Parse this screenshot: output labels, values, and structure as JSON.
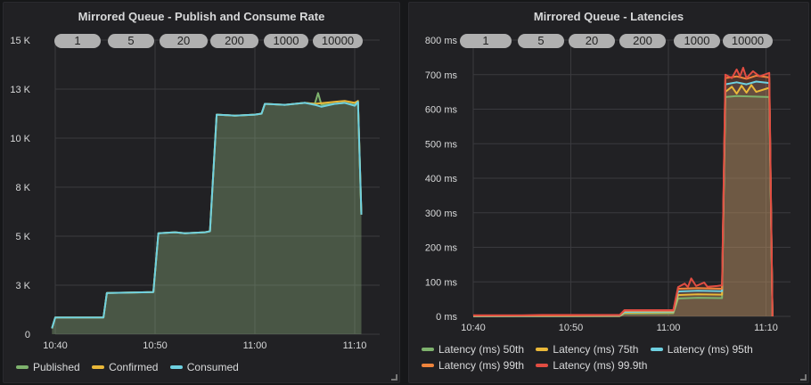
{
  "chart_data": [
    {
      "type": "area",
      "title": "Mirrored Queue - Publish and Consume Rate",
      "ylim": [
        0,
        15000
      ],
      "y_ticks": [
        0,
        2500,
        5000,
        7500,
        10000,
        12500,
        15000
      ],
      "y_tick_labels": [
        "0",
        "3 K",
        "5 K",
        "8 K",
        "10 K",
        "13 K",
        "15 K"
      ],
      "x_ticks": [
        "10:40",
        "10:50",
        "11:00",
        "11:10"
      ],
      "xlim": [
        "10:40:00",
        "11:11:40"
      ],
      "grid": true,
      "legend_placement": "bottom",
      "annotations": [
        "1",
        "5",
        "20",
        "200",
        "1000",
        "10000"
      ],
      "series": [
        {
          "name": "Published",
          "color": "#7eb26d",
          "points": [
            [
              "10:39:40",
              300
            ],
            [
              "10:40:00",
              850
            ],
            [
              "10:44:50",
              850
            ],
            [
              "10:45:10",
              2100
            ],
            [
              "10:49:50",
              2150
            ],
            [
              "10:50:20",
              5150
            ],
            [
              "10:52:00",
              5200
            ],
            [
              "10:53:00",
              5150
            ],
            [
              "10:55:00",
              5200
            ],
            [
              "10:55:30",
              5250
            ],
            [
              "10:56:10",
              11200
            ],
            [
              "10:58:00",
              11150
            ],
            [
              "11:00:00",
              11200
            ],
            [
              "11:00:40",
              11250
            ],
            [
              "11:01:00",
              11750
            ],
            [
              "11:03:00",
              11700
            ],
            [
              "11:05:00",
              11800
            ],
            [
              "11:06:00",
              11750
            ],
            [
              "11:06:20",
              12300
            ],
            [
              "11:06:40",
              11700
            ],
            [
              "11:08:00",
              11750
            ],
            [
              "11:09:00",
              11800
            ],
            [
              "11:10:00",
              11700
            ],
            [
              "11:10:20",
              11850
            ],
            [
              "11:10:40",
              6100
            ]
          ]
        },
        {
          "name": "Confirmed",
          "color": "#eab839",
          "points": [
            [
              "10:39:40",
              300
            ],
            [
              "10:40:00",
              850
            ],
            [
              "10:44:50",
              850
            ],
            [
              "10:45:10",
              2100
            ],
            [
              "10:49:50",
              2150
            ],
            [
              "10:50:20",
              5150
            ],
            [
              "10:52:00",
              5200
            ],
            [
              "10:53:00",
              5150
            ],
            [
              "10:55:00",
              5200
            ],
            [
              "10:55:30",
              5250
            ],
            [
              "10:56:10",
              11200
            ],
            [
              "10:58:00",
              11150
            ],
            [
              "11:00:00",
              11200
            ],
            [
              "11:00:40",
              11250
            ],
            [
              "11:01:00",
              11750
            ],
            [
              "11:03:00",
              11700
            ],
            [
              "11:05:00",
              11800
            ],
            [
              "11:06:00",
              11750
            ],
            [
              "11:07:00",
              11800
            ],
            [
              "11:08:00",
              11850
            ],
            [
              "11:09:00",
              11900
            ],
            [
              "11:10:00",
              11800
            ],
            [
              "11:10:20",
              11900
            ],
            [
              "11:10:40",
              6100
            ]
          ]
        },
        {
          "name": "Consumed",
          "color": "#6ed0e0",
          "points": [
            [
              "10:39:40",
              300
            ],
            [
              "10:40:00",
              850
            ],
            [
              "10:44:50",
              850
            ],
            [
              "10:45:10",
              2100
            ],
            [
              "10:49:50",
              2150
            ],
            [
              "10:50:20",
              5150
            ],
            [
              "10:52:00",
              5200
            ],
            [
              "10:53:00",
              5150
            ],
            [
              "10:55:00",
              5200
            ],
            [
              "10:55:30",
              5250
            ],
            [
              "10:56:10",
              11200
            ],
            [
              "10:58:00",
              11150
            ],
            [
              "11:00:00",
              11200
            ],
            [
              "11:00:40",
              11250
            ],
            [
              "11:01:00",
              11750
            ],
            [
              "11:03:00",
              11700
            ],
            [
              "11:05:00",
              11800
            ],
            [
              "11:06:00",
              11700
            ],
            [
              "11:06:40",
              11600
            ],
            [
              "11:08:00",
              11750
            ],
            [
              "11:09:00",
              11800
            ],
            [
              "11:10:00",
              11650
            ],
            [
              "11:10:20",
              11850
            ],
            [
              "11:10:40",
              6100
            ]
          ]
        }
      ]
    },
    {
      "type": "area",
      "title": "Mirrored Queue - Latencies",
      "ylim": [
        0,
        800
      ],
      "y_ticks": [
        0,
        100,
        200,
        300,
        400,
        500,
        600,
        700,
        800
      ],
      "y_tick_labels": [
        "0 ms",
        "100 ms",
        "200 ms",
        "300 ms",
        "400 ms",
        "500 ms",
        "600 ms",
        "700 ms",
        "800 ms"
      ],
      "x_ticks": [
        "10:40",
        "10:50",
        "11:00",
        "11:10"
      ],
      "xlim": [
        "10:40:00",
        "11:11:30"
      ],
      "grid": true,
      "legend_placement": "bottom",
      "annotations": [
        "1",
        "5",
        "20",
        "200",
        "1000",
        "10000"
      ],
      "series": [
        {
          "name": "Latency (ms) 50th",
          "color": "#7eb26d",
          "points": [
            [
              "10:40:00",
              0
            ],
            [
              "10:55:00",
              1
            ],
            [
              "10:55:30",
              8
            ],
            [
              "11:00:30",
              9
            ],
            [
              "11:01:00",
              52
            ],
            [
              "11:03:00",
              54
            ],
            [
              "11:05:30",
              53
            ],
            [
              "11:05:50",
              635
            ],
            [
              "11:07:00",
              638
            ],
            [
              "11:10:20",
              635
            ],
            [
              "11:10:40",
              0
            ]
          ]
        },
        {
          "name": "Latency (ms) 75th",
          "color": "#eab839",
          "points": [
            [
              "10:40:00",
              1
            ],
            [
              "10:55:00",
              1
            ],
            [
              "10:55:30",
              11
            ],
            [
              "11:00:30",
              12
            ],
            [
              "11:01:00",
              62
            ],
            [
              "11:03:00",
              64
            ],
            [
              "11:05:30",
              63
            ],
            [
              "11:05:50",
              650
            ],
            [
              "11:06:30",
              665
            ],
            [
              "11:07:00",
              645
            ],
            [
              "11:07:30",
              668
            ],
            [
              "11:08:00",
              648
            ],
            [
              "11:08:30",
              670
            ],
            [
              "11:09:00",
              650
            ],
            [
              "11:10:20",
              662
            ],
            [
              "11:10:40",
              0
            ]
          ]
        },
        {
          "name": "Latency (ms) 95th",
          "color": "#6ed0e0",
          "points": [
            [
              "10:40:00",
              1
            ],
            [
              "10:55:00",
              2
            ],
            [
              "10:55:30",
              13
            ],
            [
              "11:00:30",
              14
            ],
            [
              "11:01:00",
              72
            ],
            [
              "11:03:00",
              74
            ],
            [
              "11:05:30",
              73
            ],
            [
              "11:05:50",
              672
            ],
            [
              "11:07:00",
              678
            ],
            [
              "11:08:00",
              672
            ],
            [
              "11:09:00",
              680
            ],
            [
              "11:10:20",
              676
            ],
            [
              "11:10:40",
              0
            ]
          ]
        },
        {
          "name": "Latency (ms) 99th",
          "color": "#ef843c",
          "points": [
            [
              "10:40:00",
              2
            ],
            [
              "10:55:00",
              3
            ],
            [
              "10:55:30",
              16
            ],
            [
              "11:00:30",
              16
            ],
            [
              "11:01:00",
              80
            ],
            [
              "11:03:00",
              82
            ],
            [
              "11:05:30",
              80
            ],
            [
              "11:05:50",
              690
            ],
            [
              "11:07:00",
              695
            ],
            [
              "11:08:00",
              688
            ],
            [
              "11:09:00",
              697
            ],
            [
              "11:10:20",
              692
            ],
            [
              "11:10:40",
              0
            ]
          ]
        },
        {
          "name": "Latency (ms) 99.9th",
          "color": "#e24d42",
          "points": [
            [
              "10:40:00",
              3
            ],
            [
              "10:45:00",
              3
            ],
            [
              "10:47:00",
              4
            ],
            [
              "10:55:00",
              4
            ],
            [
              "10:55:30",
              18
            ],
            [
              "11:00:30",
              18
            ],
            [
              "11:01:00",
              85
            ],
            [
              "11:01:40",
              95
            ],
            [
              "11:02:00",
              85
            ],
            [
              "11:02:20",
              110
            ],
            [
              "11:02:50",
              88
            ],
            [
              "11:03:40",
              98
            ],
            [
              "11:04:00",
              86
            ],
            [
              "11:05:00",
              88
            ],
            [
              "11:05:30",
              90
            ],
            [
              "11:05:50",
              700
            ],
            [
              "11:06:30",
              690
            ],
            [
              "11:07:00",
              715
            ],
            [
              "11:07:20",
              695
            ],
            [
              "11:07:40",
              720
            ],
            [
              "11:08:00",
              690
            ],
            [
              "11:08:40",
              710
            ],
            [
              "11:09:20",
              695
            ],
            [
              "11:10:20",
              705
            ],
            [
              "11:10:40",
              0
            ]
          ]
        }
      ]
    }
  ]
}
